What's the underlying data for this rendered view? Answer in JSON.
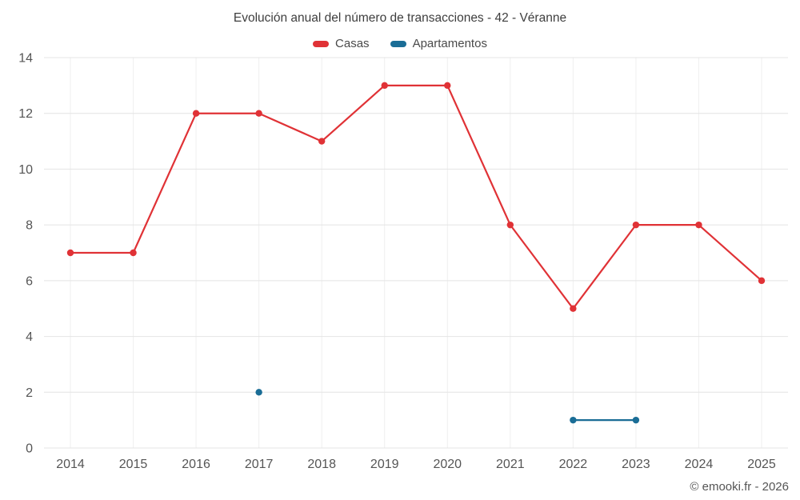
{
  "title": "Evolución anual del número de transacciones - 42 - Véranne",
  "footer": "© emooki.fr - 2026",
  "legend": {
    "items": [
      {
        "label": "Casas",
        "color": "#e03236"
      },
      {
        "label": "Apartamentos",
        "color": "#1a6d96"
      }
    ]
  },
  "chart_data": {
    "type": "line",
    "categories": [
      "2014",
      "2015",
      "2016",
      "2017",
      "2018",
      "2019",
      "2020",
      "2021",
      "2022",
      "2023",
      "2024",
      "2025"
    ],
    "series": [
      {
        "name": "Casas",
        "color": "#e03236",
        "values": [
          7,
          7,
          12,
          12,
          11,
          13,
          13,
          8,
          5,
          8,
          8,
          6
        ]
      },
      {
        "name": "Apartamentos",
        "color": "#1a6d96",
        "values": [
          null,
          null,
          null,
          2,
          null,
          null,
          null,
          null,
          1,
          1,
          null,
          null
        ]
      }
    ],
    "ylim": [
      0,
      14
    ],
    "yticks": [
      0,
      2,
      4,
      6,
      8,
      10,
      12,
      14
    ],
    "grid": true,
    "legend_position": "top",
    "colors": {
      "grid_horizontal": "#e4e4e4",
      "grid_vertical": "#efefef",
      "tick_label": "#555555"
    }
  }
}
